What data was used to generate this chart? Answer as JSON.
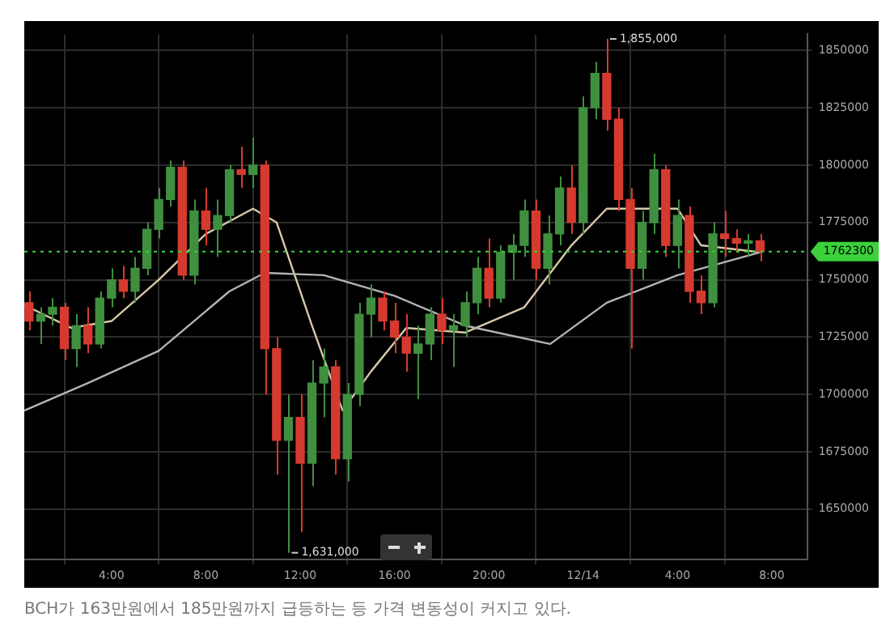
{
  "chart_data": {
    "type": "candlestick",
    "annotations": [
      {
        "text": "1,855,000",
        "x": "--12-14T01:00",
        "y": 1855000
      },
      {
        "text": "1,631,000",
        "x": "--12-13T11:30",
        "y": 1631000
      },
      "BCH가 163만원에서 185만원까지 급등하는 등 가격 변동성이 커지고 있다."
    ],
    "xlim": [
      "--12-13T00:18",
      "--12-14T09:30"
    ],
    "xticks": [
      {
        "value": "--12-13T04:00",
        "label": "4:00"
      },
      {
        "value": "--12-13T08:00",
        "label": "8:00"
      },
      {
        "value": "--12-13T12:00",
        "label": "12:00"
      },
      {
        "value": "--12-13T16:00",
        "label": "16:00"
      },
      {
        "value": "--12-13T20:00",
        "label": "20:00"
      },
      {
        "value": "--12-14T00:00",
        "label": "12/14"
      },
      {
        "value": "--12-14T04:00",
        "label": "4:00"
      },
      {
        "value": "--12-14T08:00",
        "label": "8:00"
      }
    ],
    "ylim": [
      1628000,
      1857000
    ],
    "yticks": [
      1650000,
      1675000,
      1700000,
      1725000,
      1750000,
      1775000,
      1800000,
      1825000,
      1850000
    ],
    "grid": true,
    "legend": false,
    "marker": "none",
    "line_style": "solid",
    "ref_lines": [
      {
        "axis": "y",
        "value": 1762300,
        "label": "1762300",
        "color": "#3ad13a",
        "line_style": "dotted"
      }
    ],
    "series": [
      {
        "type": "line",
        "color": "#b4b4b4",
        "x": [
          "--12-13T00:18",
          "--12-13T03:00",
          "--12-13T06:00",
          "--12-13T09:00",
          "--12-13T10:30",
          "--12-13T13:00",
          "--12-13T16:00",
          "--12-13T19:00",
          "--12-13T22:36",
          "--12-14T01:00",
          "--12-14T04:00",
          "--12-14T07:30"
        ],
        "values": [
          1693000,
          1705000,
          1719000,
          1745000,
          1753000,
          1752000,
          1743000,
          1730000,
          1722000,
          1740000,
          1752000,
          1762000
        ]
      },
      {
        "type": "line",
        "color": "#d8c8a8",
        "x": [
          "--12-13T00:18",
          "--12-13T02:18",
          "--12-13T04:00",
          "--12-13T06:00",
          "--12-13T08:00",
          "--12-13T10:00",
          "--12-13T11:00",
          "--12-13T12:30",
          "--12-13T13:48",
          "--12-13T15:00",
          "--12-13T16:30",
          "--12-13T19:00",
          "--12-13T21:30",
          "--12-13T23:30",
          "--12-14T01:00",
          "--12-14T04:00",
          "--12-14T05:00",
          "--12-14T07:30"
        ],
        "values": [
          1739000,
          1729000,
          1732000,
          1750000,
          1770000,
          1781000,
          1775000,
          1730000,
          1693000,
          1710000,
          1729000,
          1727000,
          1738000,
          1765000,
          1781000,
          1781000,
          1765000,
          1762000
        ]
      },
      {
        "x": [
          "--12-13T00:30",
          "--12-13T01:00",
          "--12-13T01:30",
          "--12-13T02:00",
          "--12-13T02:30",
          "--12-13T03:00",
          "--12-13T03:30",
          "--12-13T04:00",
          "--12-13T04:30",
          "--12-13T05:00",
          "--12-13T05:30",
          "--12-13T06:00",
          "--12-13T06:30",
          "--12-13T07:00",
          "--12-13T07:30",
          "--12-13T08:00",
          "--12-13T08:30",
          "--12-13T09:00",
          "--12-13T09:30",
          "--12-13T10:00",
          "--12-13T10:30",
          "--12-13T11:00",
          "--12-13T11:30",
          "--12-13T12:00",
          "--12-13T12:30",
          "--12-13T13:00",
          "--12-13T13:30",
          "--12-13T14:00",
          "--12-13T14:30",
          "--12-13T15:00",
          "--12-13T15:30",
          "--12-13T16:00",
          "--12-13T16:30",
          "--12-13T17:00",
          "--12-13T17:30",
          "--12-13T18:00",
          "--12-13T18:30",
          "--12-13T19:00",
          "--12-13T19:30",
          "--12-13T20:00",
          "--12-13T20:30",
          "--12-13T21:00",
          "--12-13T21:30",
          "--12-13T22:00",
          "--12-13T22:30",
          "--12-13T23:00",
          "--12-13T23:30",
          "--12-14T00:00",
          "--12-14T00:30",
          "--12-14T01:00",
          "--12-14T01:30",
          "--12-14T02:00",
          "--12-14T02:30",
          "--12-14T03:00",
          "--12-14T03:30",
          "--12-14T04:00",
          "--12-14T04:30",
          "--12-14T05:00",
          "--12-14T05:30",
          "--12-14T06:00",
          "--12-14T06:30",
          "--12-14T07:00",
          "--12-14T07:30"
        ],
        "ohlc": [
          [
            1740000,
            1745000,
            1728000,
            1732000
          ],
          [
            1732000,
            1738000,
            1722000,
            1735000
          ],
          [
            1735000,
            1742000,
            1730000,
            1738000
          ],
          [
            1738000,
            1740000,
            1715000,
            1720000
          ],
          [
            1720000,
            1735000,
            1712000,
            1730000
          ],
          [
            1730000,
            1738000,
            1718000,
            1722000
          ],
          [
            1722000,
            1745000,
            1720000,
            1742000
          ],
          [
            1742000,
            1755000,
            1738000,
            1750000
          ],
          [
            1750000,
            1756000,
            1742000,
            1745000
          ],
          [
            1745000,
            1760000,
            1740000,
            1755000
          ],
          [
            1755000,
            1775000,
            1752000,
            1772000
          ],
          [
            1772000,
            1790000,
            1768000,
            1785000
          ],
          [
            1785000,
            1802000,
            1782000,
            1799000
          ],
          [
            1799000,
            1802000,
            1750000,
            1752000
          ],
          [
            1752000,
            1785000,
            1748000,
            1780000
          ],
          [
            1780000,
            1790000,
            1765000,
            1772000
          ],
          [
            1772000,
            1785000,
            1760000,
            1778000
          ],
          [
            1778000,
            1800000,
            1775000,
            1798000
          ],
          [
            1798000,
            1808000,
            1790000,
            1796000
          ],
          [
            1796000,
            1812000,
            1790000,
            1800000
          ],
          [
            1800000,
            1802000,
            1700000,
            1720000
          ],
          [
            1720000,
            1725000,
            1665000,
            1680000
          ],
          [
            1680000,
            1700000,
            1631000,
            1690000
          ],
          [
            1690000,
            1700000,
            1640000,
            1670000
          ],
          [
            1670000,
            1715000,
            1660000,
            1705000
          ],
          [
            1705000,
            1720000,
            1690000,
            1712000
          ],
          [
            1712000,
            1715000,
            1665000,
            1672000
          ],
          [
            1672000,
            1705000,
            1662000,
            1700000
          ],
          [
            1700000,
            1740000,
            1695000,
            1735000
          ],
          [
            1735000,
            1748000,
            1725000,
            1742000
          ],
          [
            1742000,
            1745000,
            1728000,
            1732000
          ],
          [
            1732000,
            1740000,
            1718000,
            1725000
          ],
          [
            1725000,
            1735000,
            1710000,
            1718000
          ],
          [
            1718000,
            1730000,
            1698000,
            1722000
          ],
          [
            1722000,
            1738000,
            1715000,
            1735000
          ],
          [
            1735000,
            1742000,
            1722000,
            1728000
          ],
          [
            1728000,
            1735000,
            1712000,
            1730000
          ],
          [
            1730000,
            1745000,
            1725000,
            1740000
          ],
          [
            1740000,
            1760000,
            1735000,
            1755000
          ],
          [
            1755000,
            1768000,
            1738000,
            1742000
          ],
          [
            1742000,
            1765000,
            1740000,
            1762000
          ],
          [
            1762000,
            1770000,
            1750000,
            1765000
          ],
          [
            1765000,
            1785000,
            1760000,
            1780000
          ],
          [
            1780000,
            1785000,
            1750000,
            1755000
          ],
          [
            1755000,
            1778000,
            1748000,
            1770000
          ],
          [
            1770000,
            1795000,
            1765000,
            1790000
          ],
          [
            1790000,
            1800000,
            1770000,
            1775000
          ],
          [
            1775000,
            1830000,
            1770000,
            1825000
          ],
          [
            1825000,
            1845000,
            1820000,
            1840000
          ],
          [
            1840000,
            1855000,
            1815000,
            1820000
          ],
          [
            1820000,
            1825000,
            1780000,
            1785000
          ],
          [
            1785000,
            1790000,
            1720000,
            1755000
          ],
          [
            1755000,
            1780000,
            1750000,
            1775000
          ],
          [
            1775000,
            1805000,
            1770000,
            1798000
          ],
          [
            1798000,
            1800000,
            1760000,
            1765000
          ],
          [
            1765000,
            1785000,
            1755000,
            1778000
          ],
          [
            1778000,
            1782000,
            1740000,
            1745000
          ],
          [
            1745000,
            1752000,
            1735000,
            1740000
          ],
          [
            1740000,
            1775000,
            1738000,
            1770000
          ],
          [
            1770000,
            1780000,
            1760000,
            1768000
          ],
          [
            1768000,
            1772000,
            1762000,
            1766000
          ],
          [
            1766000,
            1770000,
            1760000,
            1767000
          ],
          [
            1767000,
            1770000,
            1758000,
            1762300
          ]
        ],
        "colors": [
          "#d63a2f",
          "#3f8f3f",
          "#3f8f3f",
          "#d63a2f",
          "#3f8f3f",
          "#d63a2f",
          "#3f8f3f",
          "#3f8f3f",
          "#d63a2f",
          "#3f8f3f",
          "#3f8f3f",
          "#3f8f3f",
          "#3f8f3f",
          "#d63a2f",
          "#3f8f3f",
          "#d63a2f",
          "#3f8f3f",
          "#3f8f3f",
          "#d63a2f",
          "#3f8f3f",
          "#d63a2f",
          "#d63a2f",
          "#3f8f3f",
          "#d63a2f",
          "#3f8f3f",
          "#3f8f3f",
          "#d63a2f",
          "#3f8f3f",
          "#3f8f3f",
          "#3f8f3f",
          "#d63a2f",
          "#d63a2f",
          "#d63a2f",
          "#3f8f3f",
          "#3f8f3f",
          "#d63a2f",
          "#3f8f3f",
          "#3f8f3f",
          "#3f8f3f",
          "#d63a2f",
          "#3f8f3f",
          "#3f8f3f",
          "#3f8f3f",
          "#d63a2f",
          "#3f8f3f",
          "#3f8f3f",
          "#d63a2f",
          "#3f8f3f",
          "#3f8f3f",
          "#d63a2f",
          "#d63a2f",
          "#d63a2f",
          "#3f8f3f",
          "#3f8f3f",
          "#d63a2f",
          "#3f8f3f",
          "#d63a2f",
          "#d63a2f",
          "#3f8f3f",
          "#d63a2f",
          "#d63a2f",
          "#3f8f3f",
          "#d63a2f"
        ]
      }
    ]
  }
}
